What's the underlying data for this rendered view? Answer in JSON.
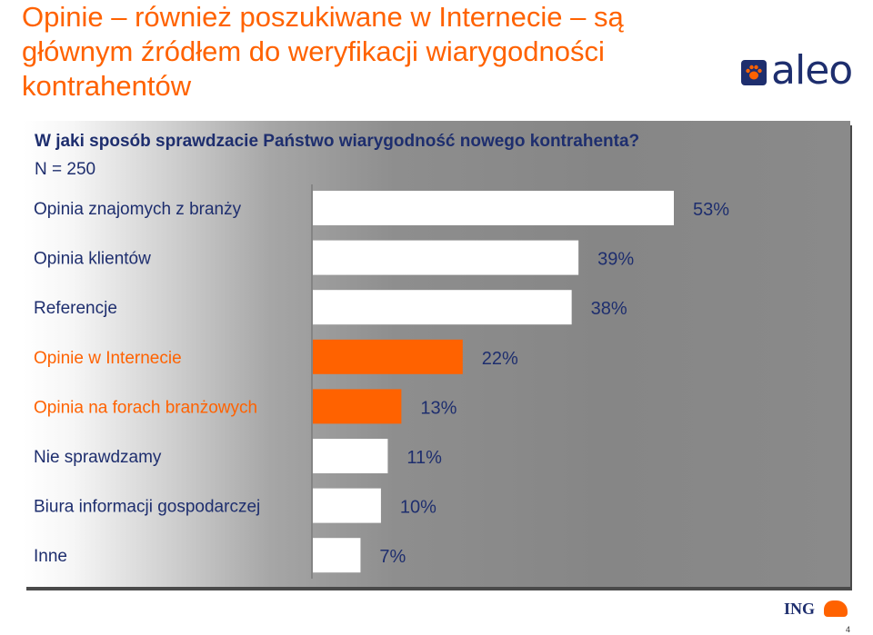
{
  "slide": {
    "title": "Opinie – również poszukiwane w Internecie – są głównym źródłem do weryfikacji wiarygodności kontrahentów",
    "question": "W jaki sposób sprawdzacie Państwo wiarygodność nowego kontrahenta?",
    "sample": "N = 250",
    "logo_aleo": "aleo",
    "logo_ing": "ING",
    "page_number": "4"
  },
  "colors": {
    "accent": "#ff6200",
    "navy": "#1e2e6e",
    "bar_default": "#ffffff",
    "bar_highlight": "#ff6200"
  },
  "chart_data": {
    "type": "bar",
    "orientation": "horizontal",
    "categories": [
      "Opinia znajomych z branży",
      "Opinia klientów",
      "Referencje",
      "Opinie w Internecie",
      "Opinia na forach branżowych",
      "Nie sprawdzamy",
      "Biura informacji gospodarczej",
      "Inne"
    ],
    "values": [
      53,
      39,
      38,
      22,
      13,
      11,
      10,
      7
    ],
    "value_labels": [
      "53%",
      "39%",
      "38%",
      "22%",
      "13%",
      "11%",
      "10%",
      "7%"
    ],
    "highlighted": [
      false,
      false,
      false,
      true,
      true,
      false,
      false,
      false
    ],
    "unit": "%",
    "xlim": [
      0,
      60
    ],
    "grid": false,
    "legend": "none"
  }
}
